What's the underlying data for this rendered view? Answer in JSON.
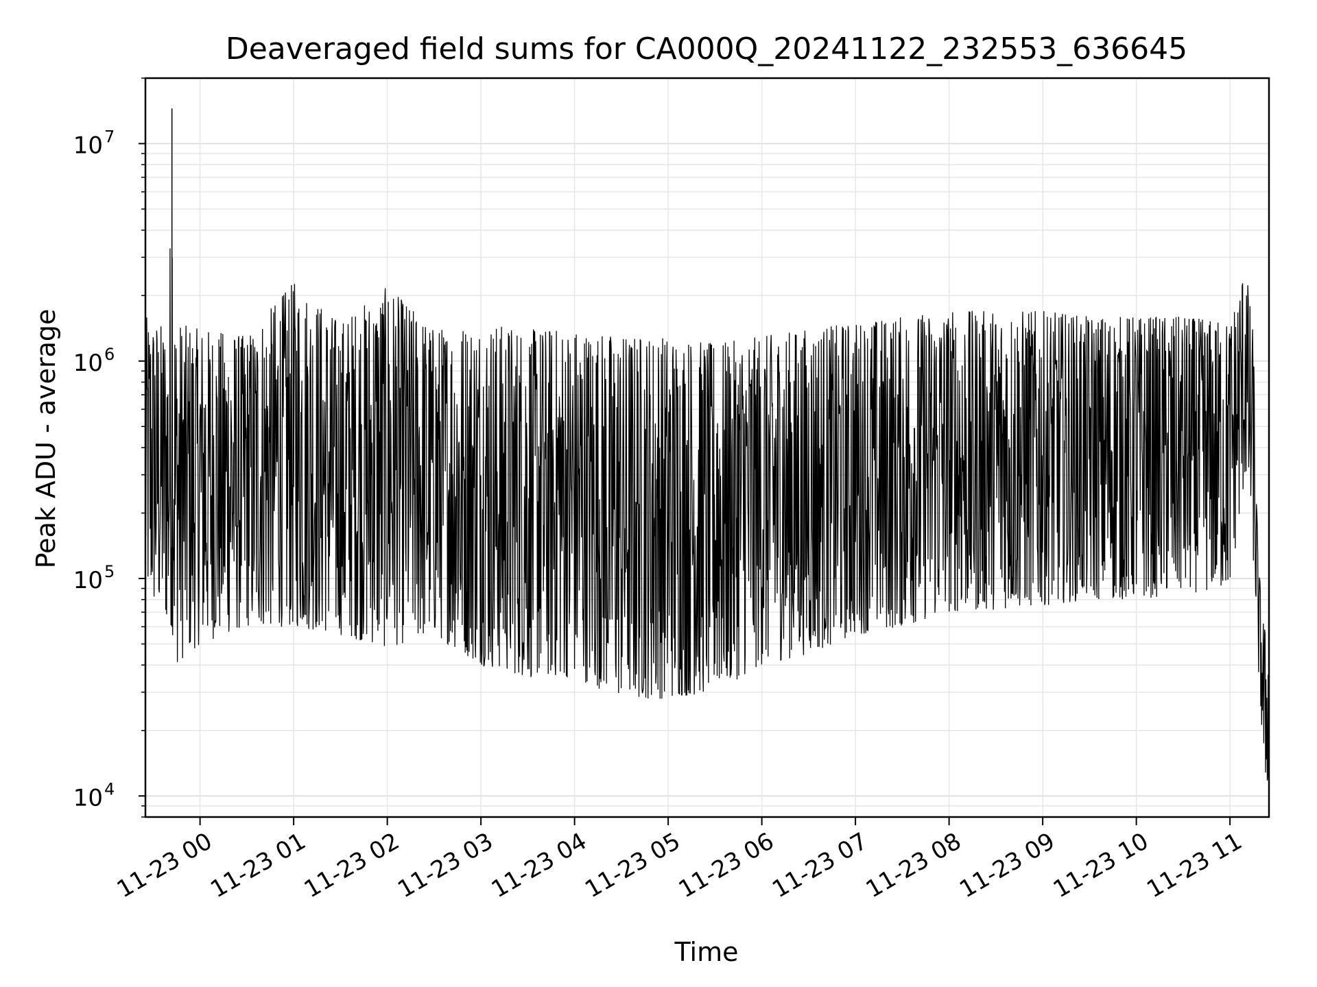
{
  "chart_data": {
    "type": "line",
    "title": "Deaveraged field sums for CA000Q_20241122_232553_636645",
    "xlabel": "Time",
    "ylabel": "Peak ADU - average",
    "yscale": "log",
    "ylim": [
      8000,
      20000000
    ],
    "xlim": [
      "2024-11-22 23:25",
      "2024-11-23 11:25"
    ],
    "x_ticks": [
      "11-23 00",
      "11-23 01",
      "11-23 02",
      "11-23 03",
      "11-23 04",
      "11-23 05",
      "11-23 06",
      "11-23 07",
      "11-23 08",
      "11-23 09",
      "11-23 10",
      "11-23 11"
    ],
    "y_ticks": [
      {
        "value": 10000,
        "base": "10",
        "exp": "4"
      },
      {
        "value": 100000,
        "base": "10",
        "exp": "5"
      },
      {
        "value": 1000000,
        "base": "10",
        "exp": "6"
      },
      {
        "value": 10000000,
        "base": "10",
        "exp": "7"
      }
    ],
    "grid": true,
    "series_color": "#000000",
    "series": [
      {
        "x": [
          "2024-11-22 23:25",
          "2024-11-22 23:40",
          "2024-11-22 23:42",
          "2024-11-22 23:44",
          "2024-11-23 00:00",
          "2024-11-23 00:30",
          "2024-11-23 01:00",
          "2024-11-23 01:30",
          "2024-11-23 02:00",
          "2024-11-23 02:30",
          "2024-11-23 03:00",
          "2024-11-23 03:30",
          "2024-11-23 04:00",
          "2024-11-23 04:30",
          "2024-11-23 05:00",
          "2024-11-23 05:30",
          "2024-11-23 06:00",
          "2024-11-23 06:30",
          "2024-11-23 07:00",
          "2024-11-23 07:30",
          "2024-11-23 08:00",
          "2024-11-23 08:30",
          "2024-11-23 09:00",
          "2024-11-23 09:30",
          "2024-11-23 10:00",
          "2024-11-23 10:30",
          "2024-11-23 11:00",
          "2024-11-23 11:10",
          "2024-11-23 11:15",
          "2024-11-23 11:18",
          "2024-11-23 11:22",
          "2024-11-23 11:25"
        ],
        "upper": [
          1600000,
          1400000,
          14500000,
          1500000,
          1400000,
          1300000,
          2300000,
          1500000,
          2200000,
          1400000,
          1500000,
          1400000,
          1400000,
          1300000,
          1300000,
          1200000,
          1300000,
          1400000,
          1500000,
          1600000,
          1700000,
          1700000,
          1700000,
          1600000,
          1600000,
          1600000,
          1500000,
          2800000,
          1300000,
          120000,
          60000,
          50000
        ],
        "lower": [
          80000,
          60000,
          60000,
          40000,
          50000,
          60000,
          60000,
          55000,
          48000,
          55000,
          40000,
          35000,
          35000,
          28000,
          28000,
          30000,
          40000,
          45000,
          55000,
          60000,
          70000,
          72000,
          75000,
          80000,
          80000,
          85000,
          90000,
          300000,
          120000,
          40000,
          12000,
          11000
        ]
      }
    ]
  }
}
